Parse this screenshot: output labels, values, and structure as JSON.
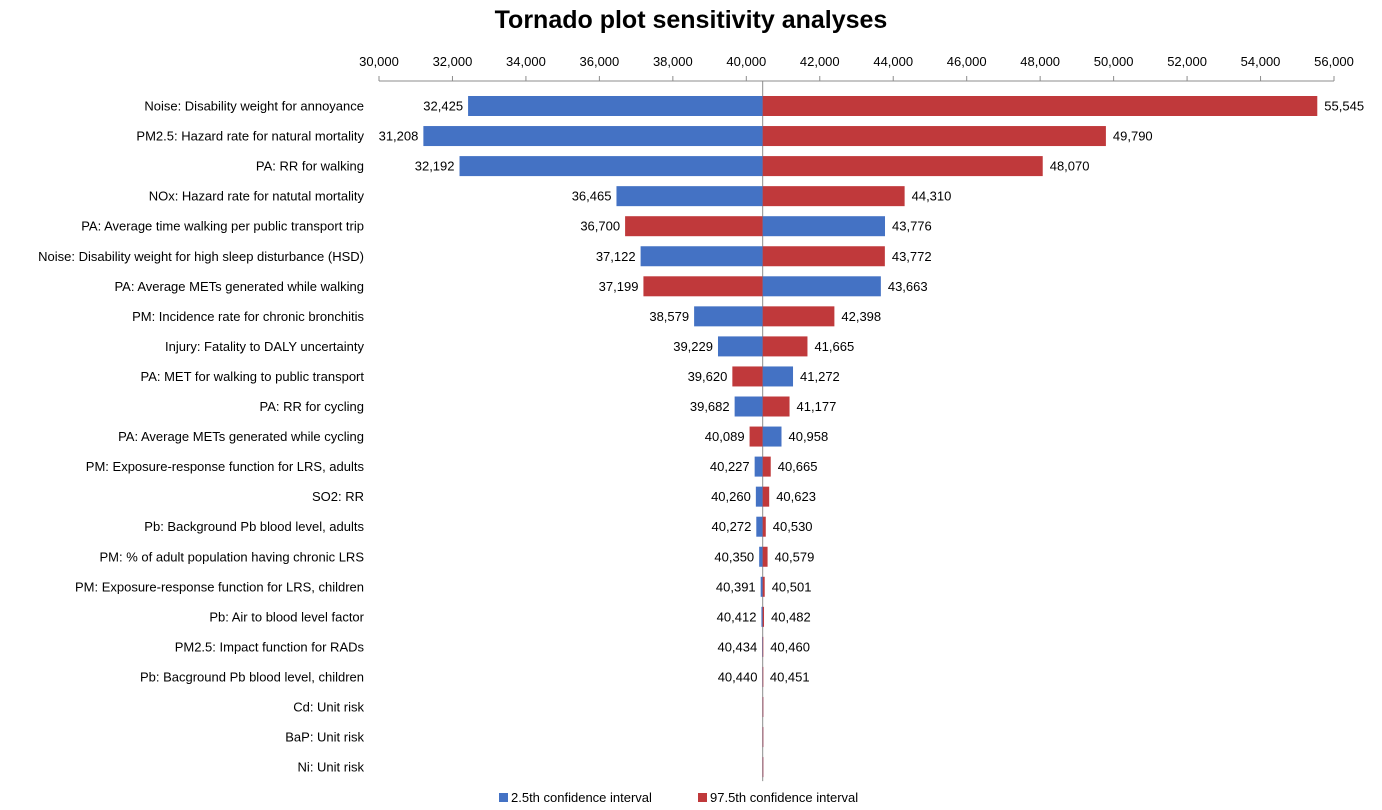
{
  "chart_data": {
    "type": "bar",
    "subtype": "tornado",
    "orientation": "horizontal",
    "title": "Tornado plot sensitivity analyses",
    "base_value": 40446,
    "xlim": [
      30000,
      56000
    ],
    "xticks": [
      30000,
      32000,
      34000,
      36000,
      38000,
      40000,
      42000,
      44000,
      46000,
      48000,
      50000,
      52000,
      54000,
      56000
    ],
    "xtick_labels": [
      "30,000",
      "32,000",
      "34,000",
      "36,000",
      "38,000",
      "40,000",
      "42,000",
      "44,000",
      "46,000",
      "48,000",
      "50,000",
      "52,000",
      "54,000",
      "56,000"
    ],
    "axis_position": "top",
    "grid": false,
    "legend_position": "bottom",
    "colors": {
      "low": "#4472C4",
      "high": "#C0393B"
    },
    "series": [
      {
        "key": "low",
        "name": "2.5th confidence interval"
      },
      {
        "key": "high",
        "name": "97.5th confidence interval"
      }
    ],
    "categories": [
      {
        "label": "Noise: Disability weight for annoyance",
        "low": 32425,
        "high": 55545,
        "low_label": "32,425",
        "high_label": "55,545",
        "left_series": "low"
      },
      {
        "label": "PM2.5: Hazard rate for natural mortality",
        "low": 31208,
        "high": 49790,
        "low_label": "31,208",
        "high_label": "49,790",
        "left_series": "low"
      },
      {
        "label": "PA: RR for walking",
        "low": 32192,
        "high": 48070,
        "low_label": "32,192",
        "high_label": "48,070",
        "left_series": "low"
      },
      {
        "label": "NOx: Hazard rate for natutal mortality",
        "low": 36465,
        "high": 44310,
        "low_label": "36,465",
        "high_label": "44,310",
        "left_series": "low"
      },
      {
        "label": "PA: Average time walking per public transport trip",
        "low": 36700,
        "high": 43776,
        "low_label": "36,700",
        "high_label": "43,776",
        "left_series": "high"
      },
      {
        "label": "Noise: Disability weight for high sleep disturbance (HSD)",
        "low": 37122,
        "high": 43772,
        "low_label": "37,122",
        "high_label": "43,772",
        "left_series": "low"
      },
      {
        "label": "PA: Average METs generated while walking",
        "low": 37199,
        "high": 43663,
        "low_label": "37,199",
        "high_label": "43,663",
        "left_series": "high"
      },
      {
        "label": "PM: Incidence rate for chronic bronchitis",
        "low": 38579,
        "high": 42398,
        "low_label": "38,579",
        "high_label": "42,398",
        "left_series": "low"
      },
      {
        "label": "Injury: Fatality to DALY uncertainty",
        "low": 39229,
        "high": 41665,
        "low_label": "39,229",
        "high_label": "41,665",
        "left_series": "low"
      },
      {
        "label": "PA: MET for walking to public transport",
        "low": 39620,
        "high": 41272,
        "low_label": "39,620",
        "high_label": "41,272",
        "left_series": "high"
      },
      {
        "label": "PA: RR for cycling",
        "low": 39682,
        "high": 41177,
        "low_label": "39,682",
        "high_label": "41,177",
        "left_series": "low"
      },
      {
        "label": "PA: Average METs generated while cycling",
        "low": 40089,
        "high": 40958,
        "low_label": "40,089",
        "high_label": "40,958",
        "left_series": "high"
      },
      {
        "label": "PM: Exposure-response function for LRS, adults",
        "low": 40227,
        "high": 40665,
        "low_label": "40,227",
        "high_label": "40,665",
        "left_series": "low"
      },
      {
        "label": "SO2: RR",
        "low": 40260,
        "high": 40623,
        "low_label": "40,260",
        "high_label": "40,623",
        "left_series": "low"
      },
      {
        "label": "Pb: Background Pb blood level, adults",
        "low": 40272,
        "high": 40530,
        "low_label": "40,272",
        "high_label": "40,530",
        "left_series": "low"
      },
      {
        "label": "PM: % of adult population having chronic LRS",
        "low": 40350,
        "high": 40579,
        "low_label": "40,350",
        "high_label": "40,579",
        "left_series": "low"
      },
      {
        "label": "PM: Exposure-response function for LRS, children",
        "low": 40391,
        "high": 40501,
        "low_label": "40,391",
        "high_label": "40,501",
        "left_series": "low"
      },
      {
        "label": "Pb: Air to blood level factor",
        "low": 40412,
        "high": 40482,
        "low_label": "40,412",
        "high_label": "40,482",
        "left_series": "low"
      },
      {
        "label": "PM2.5: Impact function for RADs",
        "low": 40434,
        "high": 40460,
        "low_label": "40,434",
        "high_label": "40,460",
        "left_series": "low"
      },
      {
        "label": "Pb: Bacground Pb blood level, children",
        "low": 40440,
        "high": 40451,
        "low_label": "40,440",
        "high_label": "40,451",
        "left_series": "low"
      },
      {
        "label": "Cd: Unit risk",
        "low": 40444,
        "high": 40448,
        "low_label": "",
        "high_label": "",
        "left_series": "low"
      },
      {
        "label": "BaP: Unit risk",
        "low": 40444,
        "high": 40448,
        "low_label": "",
        "high_label": "",
        "left_series": "low"
      },
      {
        "label": "Ni: Unit risk",
        "low": 40444,
        "high": 40448,
        "low_label": "",
        "high_label": "",
        "left_series": "low"
      }
    ]
  }
}
